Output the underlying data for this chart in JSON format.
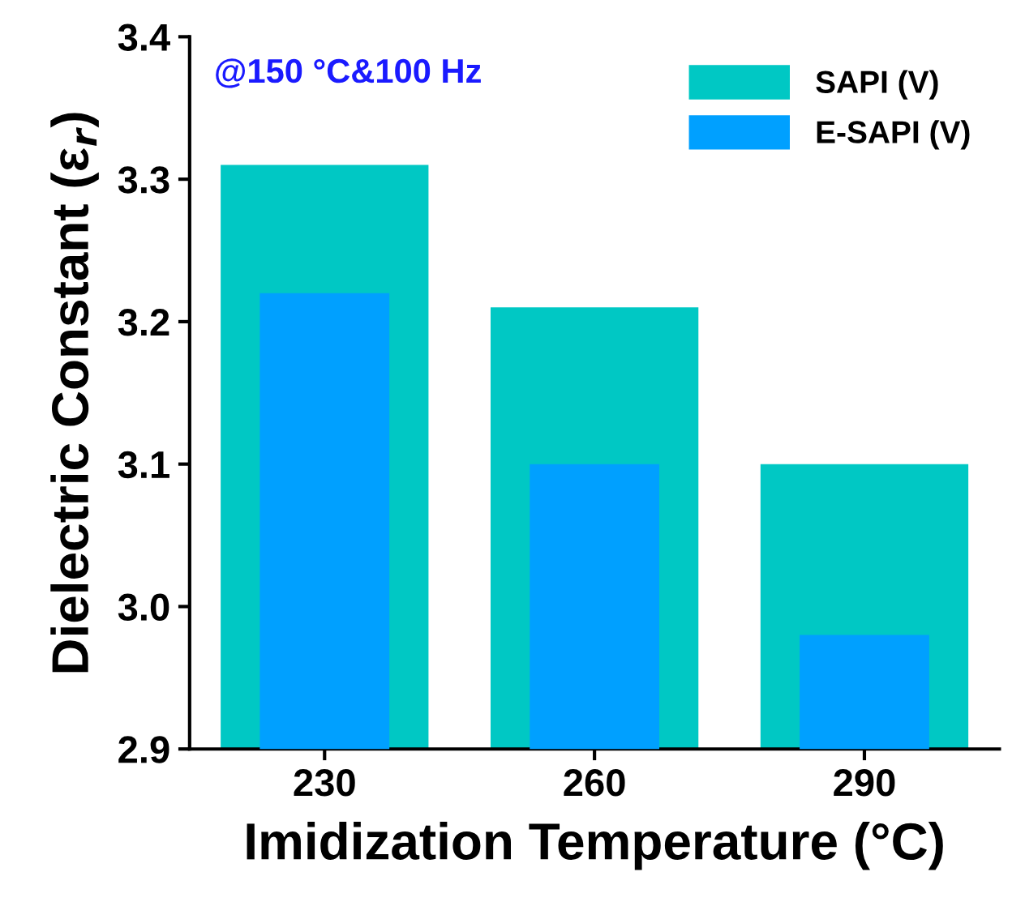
{
  "chart_data": {
    "type": "bar",
    "xlabel": "Imidization Temperature (°C)",
    "ylabel": "Dielectric Constant (ε$_{r}$)",
    "categories": [
      "230",
      "260",
      "290"
    ],
    "series": [
      {
        "name": "SAPI (V)",
        "color": "#00c8c4",
        "values": [
          3.31,
          3.21,
          3.1
        ]
      },
      {
        "name": "E-SAPI (V)",
        "color": "#00a0ff",
        "values": [
          3.22,
          3.1,
          2.98
        ]
      }
    ],
    "ylim": [
      2.9,
      3.4
    ],
    "yticks": [
      2.9,
      {
        "value": 3,
        "label": "3.0"
      },
      3.1,
      3.2,
      3.3,
      3.4
    ],
    "annotations": [
      "@150 °C&100 Hz"
    ],
    "legend": "top right",
    "grid": false
  }
}
